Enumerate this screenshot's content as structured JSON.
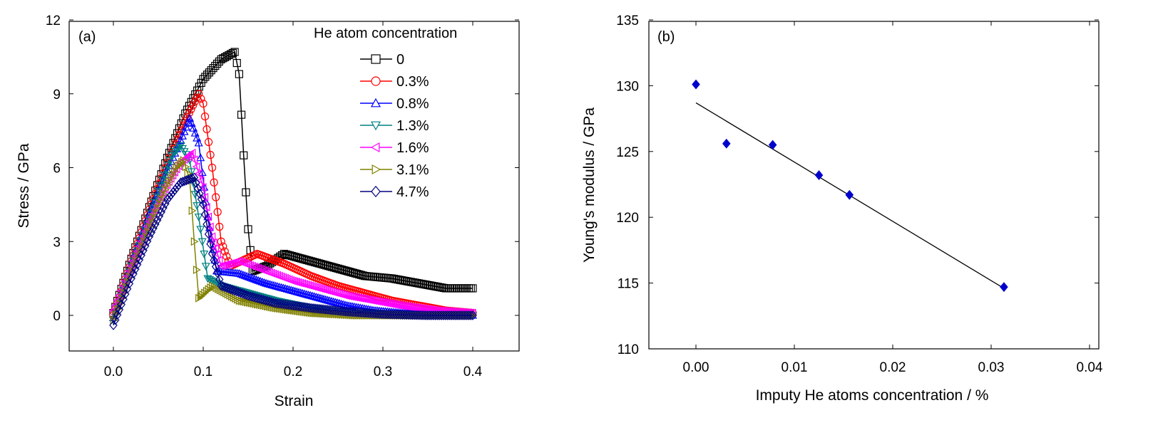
{
  "chart_data": [
    {
      "type": "line",
      "panel_label": "(a)",
      "xlabel": "Strain",
      "ylabel": "Stress / GPa",
      "xlim": [
        -0.05,
        0.45
      ],
      "ylim": [
        -1.8,
        12
      ],
      "xticks": [
        0.0,
        0.1,
        0.2,
        0.3,
        0.4
      ],
      "xtick_labels": [
        "0.0",
        "0.1",
        "0.2",
        "0.3",
        "0.4"
      ],
      "yticks": [
        0,
        3,
        6,
        9,
        12
      ],
      "ytick_labels": [
        "0",
        "3",
        "6",
        "9",
        "12"
      ],
      "legend_title": "He atom concentration",
      "legend_position": "top-right",
      "series": [
        {
          "name": "0",
          "marker": "square",
          "color": "#000000",
          "points": [
            [
              0,
              0.1
            ],
            [
              0.02,
              2.3
            ],
            [
              0.04,
              4.4
            ],
            [
              0.06,
              6.4
            ],
            [
              0.08,
              8.2
            ],
            [
              0.1,
              9.6
            ],
            [
              0.12,
              10.4
            ],
            [
              0.135,
              10.7
            ],
            [
              0.14,
              9.8
            ],
            [
              0.145,
              6.5
            ],
            [
              0.15,
              3.5
            ],
            [
              0.155,
              1.8
            ],
            [
              0.17,
              2.0
            ],
            [
              0.19,
              2.5
            ],
            [
              0.22,
              2.2
            ],
            [
              0.25,
              1.9
            ],
            [
              0.28,
              1.6
            ],
            [
              0.31,
              1.5
            ],
            [
              0.34,
              1.3
            ],
            [
              0.37,
              1.1
            ],
            [
              0.4,
              1.1
            ]
          ]
        },
        {
          "name": "0.3%",
          "marker": "circle",
          "color": "#ff0000",
          "points": [
            [
              0,
              0.0
            ],
            [
              0.02,
              2.2
            ],
            [
              0.04,
              4.3
            ],
            [
              0.06,
              6.2
            ],
            [
              0.08,
              7.9
            ],
            [
              0.095,
              9.0
            ],
            [
              0.1,
              8.6
            ],
            [
              0.11,
              6.0
            ],
            [
              0.12,
              3.0
            ],
            [
              0.13,
              2.0
            ],
            [
              0.16,
              2.5
            ],
            [
              0.19,
              2.1
            ],
            [
              0.22,
              1.6
            ],
            [
              0.25,
              1.2
            ],
            [
              0.28,
              0.9
            ],
            [
              0.31,
              0.6
            ],
            [
              0.34,
              0.4
            ],
            [
              0.37,
              0.2
            ],
            [
              0.4,
              0.1
            ]
          ]
        },
        {
          "name": "0.8%",
          "marker": "triangle-up",
          "color": "#0000ff",
          "points": [
            [
              0,
              -0.1
            ],
            [
              0.02,
              2.1
            ],
            [
              0.04,
              4.1
            ],
            [
              0.06,
              5.9
            ],
            [
              0.075,
              7.1
            ],
            [
              0.085,
              8.0
            ],
            [
              0.095,
              7.0
            ],
            [
              0.105,
              4.0
            ],
            [
              0.115,
              1.8
            ],
            [
              0.14,
              1.7
            ],
            [
              0.17,
              1.3
            ],
            [
              0.2,
              1.0
            ],
            [
              0.23,
              0.7
            ],
            [
              0.26,
              0.4
            ],
            [
              0.29,
              0.2
            ],
            [
              0.32,
              0.1
            ],
            [
              0.36,
              0.05
            ],
            [
              0.4,
              0.0
            ]
          ]
        },
        {
          "name": "1.3%",
          "marker": "triangle-down",
          "color": "#008080",
          "points": [
            [
              0,
              -0.2
            ],
            [
              0.02,
              2.0
            ],
            [
              0.04,
              3.9
            ],
            [
              0.055,
              5.5
            ],
            [
              0.065,
              6.5
            ],
            [
              0.075,
              6.9
            ],
            [
              0.085,
              6.3
            ],
            [
              0.095,
              4.0
            ],
            [
              0.105,
              1.5
            ],
            [
              0.12,
              1.2
            ],
            [
              0.15,
              0.9
            ],
            [
              0.18,
              0.6
            ],
            [
              0.22,
              0.3
            ],
            [
              0.26,
              0.1
            ],
            [
              0.3,
              0.05
            ],
            [
              0.35,
              0.0
            ],
            [
              0.4,
              0.0
            ]
          ]
        },
        {
          "name": "1.6%",
          "marker": "triangle-left",
          "color": "#ff00ff",
          "points": [
            [
              0,
              0.2
            ],
            [
              0.02,
              2.0
            ],
            [
              0.04,
              3.8
            ],
            [
              0.06,
              5.3
            ],
            [
              0.075,
              6.2
            ],
            [
              0.088,
              6.6
            ],
            [
              0.1,
              5.2
            ],
            [
              0.11,
              3.2
            ],
            [
              0.12,
              2.0
            ],
            [
              0.14,
              2.2
            ],
            [
              0.17,
              1.8
            ],
            [
              0.2,
              1.4
            ],
            [
              0.23,
              1.1
            ],
            [
              0.26,
              0.8
            ],
            [
              0.29,
              0.6
            ],
            [
              0.32,
              0.4
            ],
            [
              0.36,
              0.2
            ],
            [
              0.4,
              0.1
            ]
          ]
        },
        {
          "name": "3.1%",
          "marker": "triangle-right",
          "color": "#808000",
          "points": [
            [
              0,
              -0.2
            ],
            [
              0.02,
              1.8
            ],
            [
              0.04,
              3.6
            ],
            [
              0.06,
              5.3
            ],
            [
              0.07,
              6.0
            ],
            [
              0.078,
              6.3
            ],
            [
              0.085,
              5.5
            ],
            [
              0.09,
              3.0
            ],
            [
              0.095,
              0.7
            ],
            [
              0.11,
              1.2
            ],
            [
              0.14,
              0.6
            ],
            [
              0.18,
              0.3
            ],
            [
              0.22,
              0.1
            ],
            [
              0.27,
              0.0
            ],
            [
              0.33,
              0.0
            ],
            [
              0.4,
              0.0
            ]
          ]
        },
        {
          "name": "4.7%",
          "marker": "diamond",
          "color": "#000080",
          "points": [
            [
              0,
              -0.4
            ],
            [
              0.02,
              1.5
            ],
            [
              0.04,
              3.2
            ],
            [
              0.06,
              4.7
            ],
            [
              0.075,
              5.4
            ],
            [
              0.09,
              5.6
            ],
            [
              0.1,
              4.5
            ],
            [
              0.11,
              2.5
            ],
            [
              0.12,
              1.2
            ],
            [
              0.15,
              0.8
            ],
            [
              0.18,
              0.5
            ],
            [
              0.22,
              0.3
            ],
            [
              0.26,
              0.15
            ],
            [
              0.3,
              0.05
            ],
            [
              0.35,
              0.0
            ],
            [
              0.4,
              0.0
            ]
          ]
        }
      ]
    },
    {
      "type": "scatter",
      "panel_label": "(b)",
      "xlabel": "Imputy He atoms concentration / %",
      "ylabel": "Young's modulus / GPa",
      "xlim": [
        -0.005,
        0.04
      ],
      "ylim": [
        110,
        135
      ],
      "xticks": [
        0.0,
        0.01,
        0.02,
        0.03,
        0.04
      ],
      "xtick_labels": [
        "0.00",
        "0.01",
        "0.02",
        "0.03",
        "0.04"
      ],
      "yticks": [
        110,
        115,
        120,
        125,
        130,
        135
      ],
      "ytick_labels": [
        "110",
        "115",
        "120",
        "125",
        "130",
        "135"
      ],
      "marker_color": "#0000cc",
      "points": [
        [
          0.0,
          130.1
        ],
        [
          0.0031,
          125.6
        ],
        [
          0.0078,
          125.5
        ],
        [
          0.0125,
          123.2
        ],
        [
          0.0156,
          121.7
        ],
        [
          0.0313,
          114.7
        ]
      ],
      "fit_line": [
        [
          0.0,
          128.7
        ],
        [
          0.0313,
          114.6
        ]
      ]
    }
  ]
}
